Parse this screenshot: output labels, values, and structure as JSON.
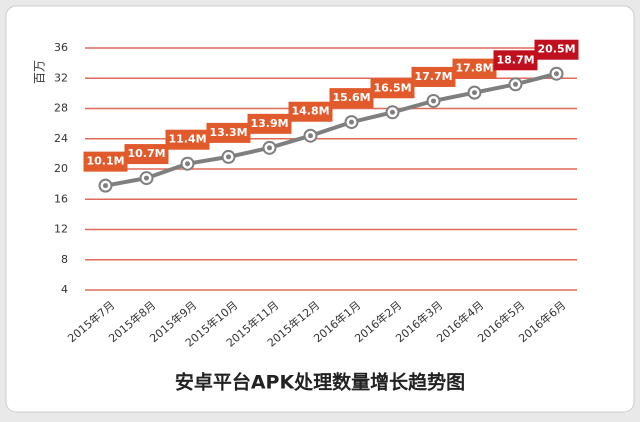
{
  "chart_data": {
    "type": "line",
    "title": "安卓平台APK处理数量增长趋势图",
    "y_label": "百万",
    "categories": [
      "2015年7月",
      "2015年8月",
      "2015年9月",
      "2015年10月",
      "2015年11月",
      "2015年12月",
      "2016年1月",
      "2016年2月",
      "2016年3月",
      "2016年4月",
      "2016年5月",
      "2016年6月"
    ],
    "series": [
      {
        "color": "#7f7f7f",
        "values": [
          17.8,
          18.8,
          20.7,
          21.6,
          22.8,
          24.4,
          26.2,
          27.5,
          29.0,
          30.1,
          31.2,
          32.6
        ]
      }
    ],
    "annotations": [
      "10.1M",
      "10.7M",
      "11.4M",
      "13.3M",
      "13.9M",
      "14.8M",
      "15.6M",
      "16.5M",
      "17.7M",
      "17.8M",
      "18.7M",
      "20.5M"
    ],
    "annotation_colors": [
      "#e05a2b",
      "#e05a2b",
      "#e05a2b",
      "#e05a2b",
      "#e05a2b",
      "#e05a2b",
      "#e05a2b",
      "#e05a2b",
      "#e05a2b",
      "#e05a2b",
      "#c00f1e",
      "#c00f1e"
    ],
    "ylim": [
      4,
      36
    ],
    "yticks": [
      4,
      8,
      12,
      16,
      20,
      24,
      28,
      32,
      36
    ],
    "grid": true,
    "grid_color": "#e06a5a"
  }
}
